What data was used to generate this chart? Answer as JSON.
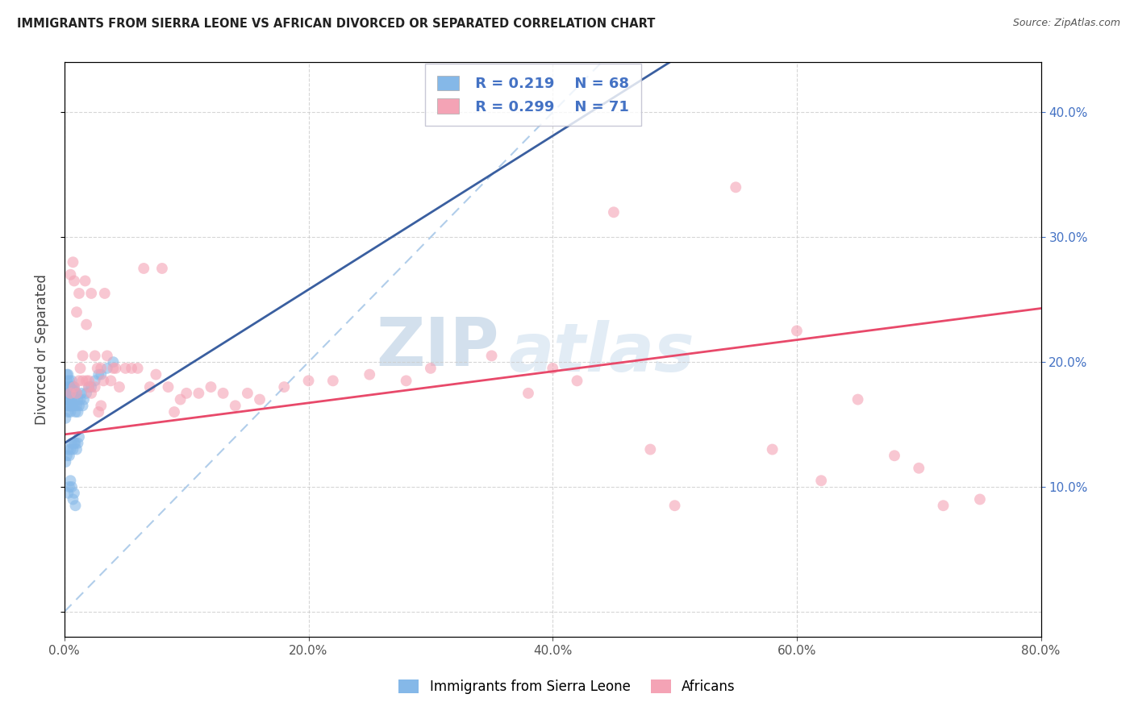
{
  "title": "IMMIGRANTS FROM SIERRA LEONE VS AFRICAN DIVORCED OR SEPARATED CORRELATION CHART",
  "source": "Source: ZipAtlas.com",
  "ylabel": "Divorced or Separated",
  "xlim": [
    0.0,
    0.8
  ],
  "ylim": [
    -0.02,
    0.44
  ],
  "watermark_zip": "ZIP",
  "watermark_atlas": "atlas",
  "legend_R1": "R = 0.219",
  "legend_N1": "N = 68",
  "legend_R2": "R = 0.299",
  "legend_N2": "N = 71",
  "blue_color": "#85B8E8",
  "pink_color": "#F4A3B5",
  "blue_line_color": "#3A5FA0",
  "pink_line_color": "#E8496A",
  "diag_line_color": "#A8C8E8",
  "blue_scatter_x": [
    0.001,
    0.001,
    0.001,
    0.002,
    0.002,
    0.002,
    0.002,
    0.003,
    0.003,
    0.003,
    0.003,
    0.003,
    0.004,
    0.004,
    0.004,
    0.004,
    0.005,
    0.005,
    0.005,
    0.005,
    0.006,
    0.006,
    0.006,
    0.006,
    0.007,
    0.007,
    0.007,
    0.008,
    0.008,
    0.008,
    0.009,
    0.009,
    0.01,
    0.01,
    0.011,
    0.011,
    0.012,
    0.013,
    0.014,
    0.015,
    0.016,
    0.018,
    0.02,
    0.022,
    0.025,
    0.028,
    0.03,
    0.035,
    0.04,
    0.001,
    0.002,
    0.003,
    0.004,
    0.005,
    0.006,
    0.007,
    0.008,
    0.009,
    0.01,
    0.011,
    0.012,
    0.003,
    0.004,
    0.005,
    0.006,
    0.007,
    0.008,
    0.009
  ],
  "blue_scatter_y": [
    0.155,
    0.17,
    0.18,
    0.165,
    0.175,
    0.185,
    0.19,
    0.16,
    0.17,
    0.175,
    0.18,
    0.19,
    0.165,
    0.17,
    0.175,
    0.185,
    0.16,
    0.165,
    0.175,
    0.18,
    0.165,
    0.17,
    0.18,
    0.185,
    0.165,
    0.175,
    0.18,
    0.165,
    0.17,
    0.18,
    0.16,
    0.175,
    0.165,
    0.175,
    0.16,
    0.17,
    0.165,
    0.17,
    0.175,
    0.165,
    0.17,
    0.175,
    0.18,
    0.18,
    0.185,
    0.19,
    0.19,
    0.195,
    0.2,
    0.12,
    0.125,
    0.13,
    0.125,
    0.13,
    0.135,
    0.13,
    0.135,
    0.135,
    0.13,
    0.135,
    0.14,
    0.095,
    0.1,
    0.105,
    0.1,
    0.09,
    0.095,
    0.085
  ],
  "pink_scatter_x": [
    0.005,
    0.007,
    0.008,
    0.01,
    0.012,
    0.013,
    0.015,
    0.017,
    0.018,
    0.02,
    0.022,
    0.025,
    0.027,
    0.03,
    0.032,
    0.033,
    0.035,
    0.038,
    0.04,
    0.042,
    0.045,
    0.05,
    0.055,
    0.06,
    0.065,
    0.07,
    0.075,
    0.08,
    0.085,
    0.09,
    0.095,
    0.1,
    0.11,
    0.12,
    0.13,
    0.14,
    0.15,
    0.16,
    0.18,
    0.2,
    0.22,
    0.25,
    0.28,
    0.3,
    0.35,
    0.38,
    0.4,
    0.42,
    0.45,
    0.48,
    0.5,
    0.55,
    0.58,
    0.6,
    0.62,
    0.65,
    0.68,
    0.7,
    0.72,
    0.75,
    0.005,
    0.008,
    0.01,
    0.012,
    0.015,
    0.018,
    0.02,
    0.022,
    0.025,
    0.028,
    0.03
  ],
  "pink_scatter_y": [
    0.27,
    0.28,
    0.265,
    0.24,
    0.255,
    0.195,
    0.205,
    0.265,
    0.23,
    0.185,
    0.255,
    0.205,
    0.195,
    0.195,
    0.185,
    0.255,
    0.205,
    0.185,
    0.195,
    0.195,
    0.18,
    0.195,
    0.195,
    0.195,
    0.275,
    0.18,
    0.19,
    0.275,
    0.18,
    0.16,
    0.17,
    0.175,
    0.175,
    0.18,
    0.175,
    0.165,
    0.175,
    0.17,
    0.18,
    0.185,
    0.185,
    0.19,
    0.185,
    0.195,
    0.205,
    0.175,
    0.195,
    0.185,
    0.32,
    0.13,
    0.085,
    0.34,
    0.13,
    0.225,
    0.105,
    0.17,
    0.125,
    0.115,
    0.085,
    0.09,
    0.175,
    0.18,
    0.175,
    0.185,
    0.185,
    0.185,
    0.18,
    0.175,
    0.18,
    0.16,
    0.165
  ],
  "blue_trend_x0": 0.0,
  "blue_trend_y0": 0.135,
  "blue_trend_x1": 0.065,
  "blue_trend_y1": 0.175,
  "pink_trend_x0": 0.0,
  "pink_trend_y0": 0.142,
  "pink_trend_x1": 0.8,
  "pink_trend_y1": 0.243
}
